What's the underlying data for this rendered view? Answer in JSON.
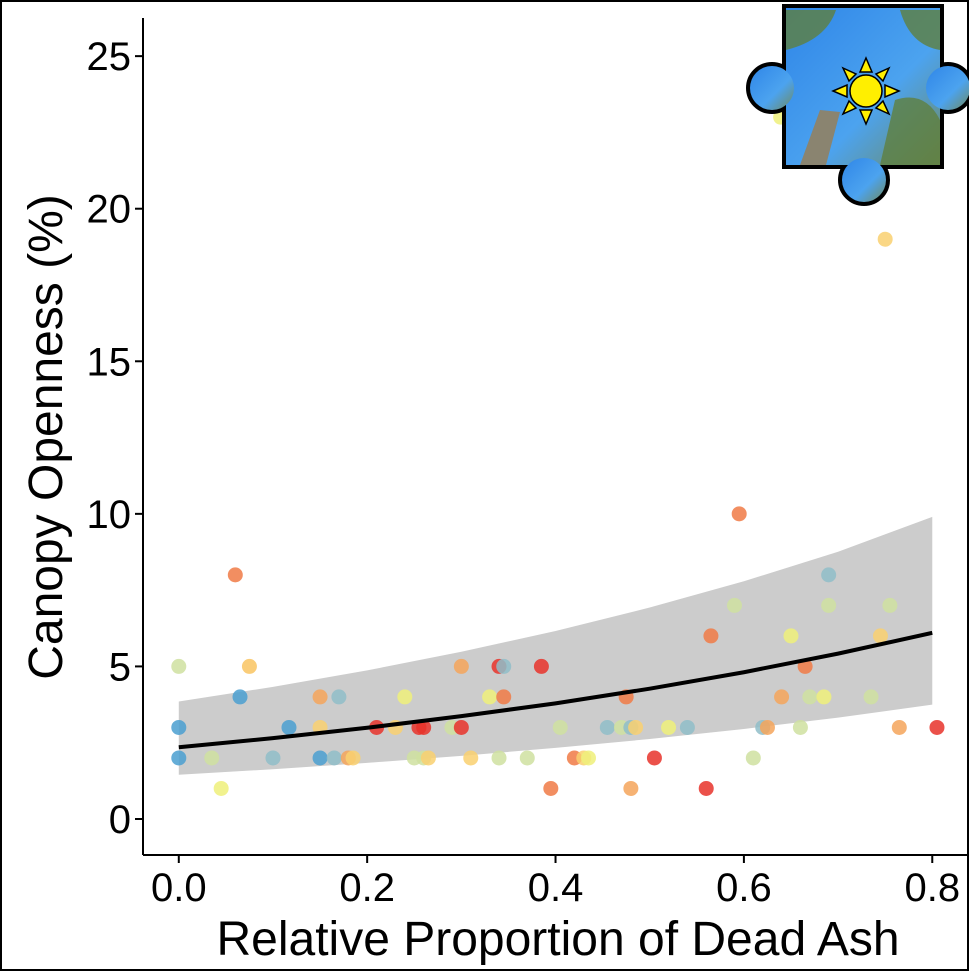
{
  "chart_data": {
    "type": "scatter",
    "x_label": "Relative Proportion of Dead Ash",
    "y_label": "Canopy Openness (%)",
    "xlim": [
      -0.038,
      0.839
    ],
    "ylim": [
      -1.18,
      26.25
    ],
    "xticks": [
      {
        "value": 0,
        "label": "0.0"
      },
      {
        "value": 0.2,
        "label": "0.2"
      },
      {
        "value": 0.4,
        "label": "0.4"
      },
      {
        "value": 0.6,
        "label": "0.6"
      },
      {
        "value": 0.8,
        "label": "0.8"
      }
    ],
    "yticks": [
      0,
      5,
      10,
      15,
      20,
      25
    ],
    "x": [
      0.0,
      0.0,
      0.0,
      0.035,
      0.045,
      0.06,
      0.065,
      0.075,
      0.1,
      0.117,
      0.15,
      0.15,
      0.15,
      0.165,
      0.17,
      0.18,
      0.185,
      0.21,
      0.23,
      0.24,
      0.25,
      0.255,
      0.26,
      0.26,
      0.265,
      0.29,
      0.3,
      0.3,
      0.31,
      0.33,
      0.34,
      0.345,
      0.345,
      0.34,
      0.37,
      0.385,
      0.395,
      0.405,
      0.42,
      0.43,
      0.435,
      0.455,
      0.47,
      0.475,
      0.48,
      0.48,
      0.485,
      0.505,
      0.52,
      0.54,
      0.56,
      0.565,
      0.59,
      0.595,
      0.61,
      0.62,
      0.625,
      0.64,
      0.65,
      0.66,
      0.665,
      0.67,
      0.685,
      0.69,
      0.69,
      0.735,
      0.745,
      0.75,
      0.755,
      0.765,
      0.805,
      0.639
    ],
    "values": [
      5,
      3,
      2,
      2,
      1,
      8,
      4,
      5,
      2,
      3,
      4,
      3,
      2,
      2,
      4,
      2,
      2,
      3,
      3,
      4,
      2,
      3,
      3,
      2,
      2,
      3,
      3,
      5,
      2,
      4,
      5,
      5,
      4,
      2,
      2,
      5,
      1,
      3,
      2,
      2,
      2,
      3,
      3,
      4,
      3,
      1,
      3,
      2,
      3,
      3,
      1,
      6,
      7,
      10,
      2,
      3,
      3,
      4,
      6,
      3,
      5,
      4,
      4,
      8,
      7,
      4,
      6,
      19,
      7,
      3,
      3,
      23
    ],
    "colors": [
      "#cfe0a0",
      "#4a9fd0",
      "#4a9fd0",
      "#cfe0a0",
      "#eef07a",
      "#f07a45",
      "#4a9fd0",
      "#f9c462",
      "#8fbdc8",
      "#4a9fd0",
      "#f4a55a",
      "#f9d070",
      "#4a9fd0",
      "#8fbdc8",
      "#8fbdc8",
      "#f4a55a",
      "#f9d070",
      "#e8322a",
      "#f9d070",
      "#eef07a",
      "#cfe0a0",
      "#e8322a",
      "#e8322a",
      "#cfe0a0",
      "#f9d070",
      "#cfe0a0",
      "#e8322a",
      "#f4a55a",
      "#f9d070",
      "#eef07a",
      "#e8322a",
      "#8fbdc8",
      "#f07a45",
      "#cfe0a0",
      "#cfe0a0",
      "#e8322a",
      "#f07a45",
      "#cfe0a0",
      "#f07a45",
      "#f9d070",
      "#eef07a",
      "#8fbdc8",
      "#cfe0a0",
      "#f07a45",
      "#8fbdc8",
      "#f4a55a",
      "#f9d070",
      "#e8322a",
      "#eef07a",
      "#8fbdc8",
      "#e8322a",
      "#f07a45",
      "#cfe0a0",
      "#f07a45",
      "#cfe0a0",
      "#8fbdc8",
      "#f4a55a",
      "#f4a55a",
      "#eef07a",
      "#cfe0a0",
      "#f07a45",
      "#cfe0a0",
      "#eef07a",
      "#8fbdc8",
      "#cfe0a0",
      "#cfe0a0",
      "#f9d070",
      "#f9d070",
      "#cfe0a0",
      "#f4a55a",
      "#e8322a",
      "#eef07a"
    ],
    "fit": {
      "x": [
        0,
        0.1,
        0.2,
        0.3,
        0.4,
        0.5,
        0.6,
        0.7,
        0.8
      ],
      "values": [
        2.35,
        2.65,
        2.99,
        3.37,
        3.79,
        4.27,
        4.81,
        5.42,
        6.1
      ],
      "lower": [
        1.45,
        1.63,
        1.84,
        2.07,
        2.33,
        2.62,
        2.95,
        3.32,
        3.75
      ],
      "upper": [
        3.85,
        4.33,
        4.87,
        5.48,
        6.16,
        6.93,
        7.79,
        8.76,
        9.9
      ],
      "color": "#000000",
      "band_color": "#cccccc"
    }
  }
}
